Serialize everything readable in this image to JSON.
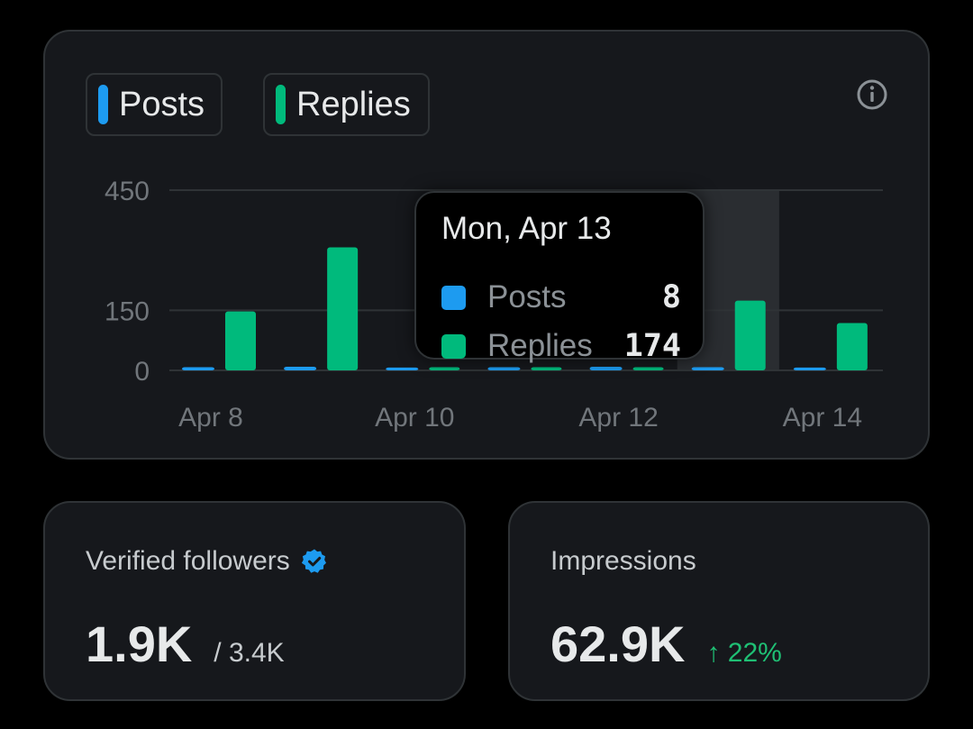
{
  "legend": {
    "posts_label": "Posts",
    "replies_label": "Replies"
  },
  "colors": {
    "posts": "#1d9bf0",
    "replies": "#00ba7c",
    "grid": "#2f3336",
    "highlight": "#2a2d31"
  },
  "icons": {
    "info": "info-icon",
    "verified": "verified-badge-icon",
    "trend": "arrow-up-icon"
  },
  "chart_data": {
    "type": "bar",
    "categories": [
      "Apr 8",
      "Apr 9",
      "Apr 10",
      "Apr 11",
      "Apr 12",
      "Apr 13",
      "Apr 14"
    ],
    "x_tick_labels": [
      "Apr 8",
      "Apr 10",
      "Apr 12",
      "Apr 14"
    ],
    "y_tick_labels": [
      "450",
      "150",
      "0"
    ],
    "y_ticks": [
      450,
      150,
      0
    ],
    "ylim": [
      0,
      450
    ],
    "highlighted_category": "Apr 13",
    "series": [
      {
        "name": "Posts",
        "values": [
          8,
          9,
          7,
          8,
          9,
          8,
          7
        ]
      },
      {
        "name": "Replies",
        "values": [
          147,
          307,
          8,
          8,
          8,
          174,
          118
        ]
      }
    ],
    "grid": true,
    "legend_position": "top-left"
  },
  "tooltip": {
    "title": "Mon, Apr 13",
    "posts_label": "Posts",
    "posts_value": "8",
    "replies_label": "Replies",
    "replies_value": "174"
  },
  "followers": {
    "label": "Verified followers",
    "value": "1.9K",
    "total": "/ 3.4K"
  },
  "impressions": {
    "label": "Impressions",
    "value": "62.9K",
    "change": "↑ 22%"
  }
}
